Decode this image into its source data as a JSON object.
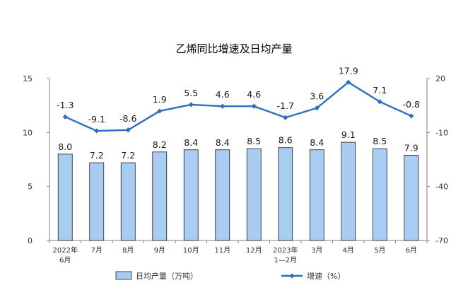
{
  "chart_data": {
    "type": "bar+line",
    "title": "乙烯同比增速及日均产量",
    "categories": [
      "2022年\n6月",
      "7月",
      "8月",
      "9月",
      "10月",
      "11月",
      "12月",
      "2023年\n1—2月",
      "3月",
      "4月",
      "5月",
      "6月"
    ],
    "left_axis": {
      "ticks": [
        0,
        5,
        10,
        15
      ],
      "ylim": [
        0,
        15
      ]
    },
    "right_axis": {
      "ticks": [
        -70,
        -40,
        -10,
        20
      ],
      "ylim": [
        -70,
        20
      ]
    },
    "series": [
      {
        "name": "日均产量（万吨）",
        "type": "bar",
        "axis": "left",
        "values": [
          8.0,
          7.2,
          7.2,
          8.2,
          8.4,
          8.4,
          8.5,
          8.6,
          8.4,
          9.1,
          8.5,
          7.9
        ],
        "labels": [
          "8.0",
          "7.2",
          "7.2",
          "8.2",
          "8.4",
          "8.4",
          "8.5",
          "8.6",
          "8.4",
          "9.1",
          "8.5",
          "7.9"
        ],
        "color": "#a9cdf2"
      },
      {
        "name": "增速（%）",
        "type": "line",
        "axis": "right",
        "values": [
          -1.3,
          -9.1,
          -8.6,
          1.9,
          5.5,
          4.6,
          4.6,
          -1.7,
          3.6,
          17.9,
          7.1,
          -0.8
        ],
        "labels": [
          "-1.3",
          "-9.1",
          "-8.6",
          "1.9",
          "5.5",
          "4.6",
          "4.6",
          "-1.7",
          "3.6",
          "17.9",
          "7.1",
          "-0.8"
        ],
        "color": "#2e6fbd"
      }
    ],
    "legend": {
      "position": "bottom"
    },
    "grid": false
  }
}
